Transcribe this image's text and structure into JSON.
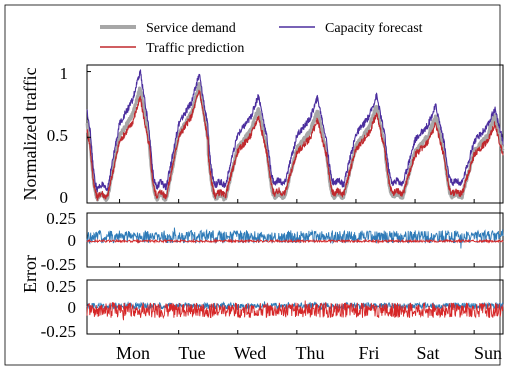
{
  "chart_data": [
    {
      "type": "line",
      "panel": "top",
      "ylabel": "Normalized traffic",
      "ylim": [
        0,
        1.05
      ],
      "yticks": [
        0,
        0.5,
        1
      ],
      "yticklabels": [
        "0",
        "0.5",
        "1"
      ],
      "days": [
        "Mon",
        "Tue",
        "Wed",
        "Thu",
        "Fri",
        "Sat",
        "Sun"
      ],
      "legend": {
        "placement": "top-left",
        "entries": [
          "Service demand",
          "Traffic prediction",
          "Capacity forecast"
        ]
      },
      "series": [
        {
          "name": "Service demand",
          "color": "#a7a7a7",
          "daily_peak": [
            0.88,
            0.9,
            0.72,
            0.7,
            0.74,
            0.66,
            0.66
          ],
          "daily_trough": [
            0.05,
            0.05,
            0.05,
            0.06,
            0.06,
            0.06,
            0.06
          ]
        },
        {
          "name": "Traffic prediction",
          "color": "#c0282d",
          "daily_peak": [
            0.8,
            0.86,
            0.66,
            0.63,
            0.68,
            0.6,
            0.6
          ],
          "daily_trough": [
            0.06,
            0.07,
            0.07,
            0.08,
            0.08,
            0.08,
            0.08
          ]
        },
        {
          "name": "Capacity forecast",
          "color": "#4b2e9e",
          "daily_peak": [
            1.0,
            0.98,
            0.82,
            0.8,
            0.82,
            0.74,
            0.72
          ],
          "daily_trough": [
            0.12,
            0.14,
            0.15,
            0.16,
            0.16,
            0.16,
            0.16
          ]
        }
      ]
    },
    {
      "type": "line",
      "panel": "middle",
      "ylabel": "Error",
      "ylim": [
        -0.25,
        0.25
      ],
      "yticklabels": [
        "0.25",
        "0",
        "-0.25"
      ],
      "series": [
        {
          "name": "",
          "color": "#2e7bb8",
          "mean": 0.03,
          "amplitude": 0.12
        },
        {
          "name": "",
          "color": "#d62728",
          "mean": -0.01,
          "amplitude": 0.02
        }
      ]
    },
    {
      "type": "line",
      "panel": "bottom",
      "ylim": [
        -0.25,
        0.25
      ],
      "yticklabels": [
        "0.25",
        "0",
        "-0.25"
      ],
      "series": [
        {
          "name": "",
          "color": "#2e7bb8",
          "mean": 0.01,
          "amplitude": 0.06
        },
        {
          "name": "",
          "color": "#d62728",
          "mean": -0.03,
          "amplitude": 0.14
        }
      ]
    }
  ]
}
